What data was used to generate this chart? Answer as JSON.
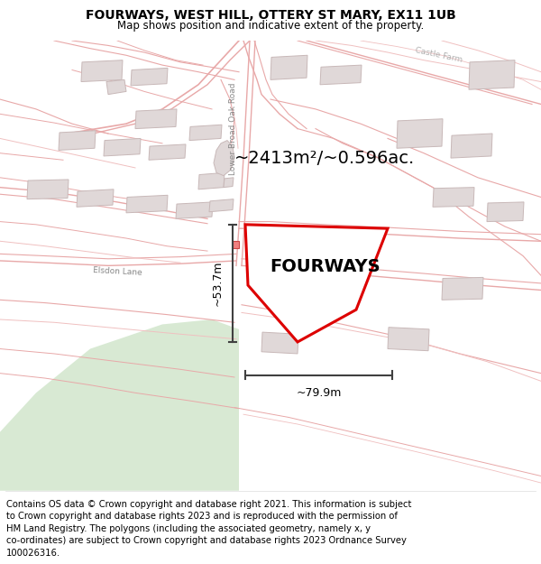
{
  "title": "FOURWAYS, WEST HILL, OTTERY ST MARY, EX11 1UB",
  "subtitle": "Map shows position and indicative extent of the property.",
  "footer_line1": "Contains OS data © Crown copyright and database right 2021. This information is subject",
  "footer_line2": "to Crown copyright and database rights 2023 and is reproduced with the permission of",
  "footer_line3": "HM Land Registry. The polygons (including the associated geometry, namely x, y",
  "footer_line4": "co-ordinates) are subject to Crown copyright and database rights 2023 Ordnance Survey",
  "footer_line5": "100026316.",
  "area_text": "~2413m²/~0.596ac.",
  "label_text": "FOURWAYS",
  "dim_v": "~53.7m",
  "dim_h": "~79.9m",
  "road_label1": "Lower Broad Oak Road",
  "road_label2": "Elsdon Lane",
  "road_label3": "Castle Farm",
  "bg_color": "#ffffff",
  "map_bg": "#f8f4f4",
  "line_color": "#e8a8a8",
  "line_color2": "#f0c0c0",
  "building_fill": "#e0d8d8",
  "building_edge": "#c8b8b8",
  "property_color": "#dd0000",
  "dim_color": "#404040",
  "text_color": "#888888",
  "small_rect_color": "#e08080",
  "title_fs": 10,
  "subtitle_fs": 8.5,
  "footer_fs": 7.2,
  "area_fs": 14,
  "label_fs": 14,
  "dim_fs": 9,
  "road_label_fs": 6.5
}
